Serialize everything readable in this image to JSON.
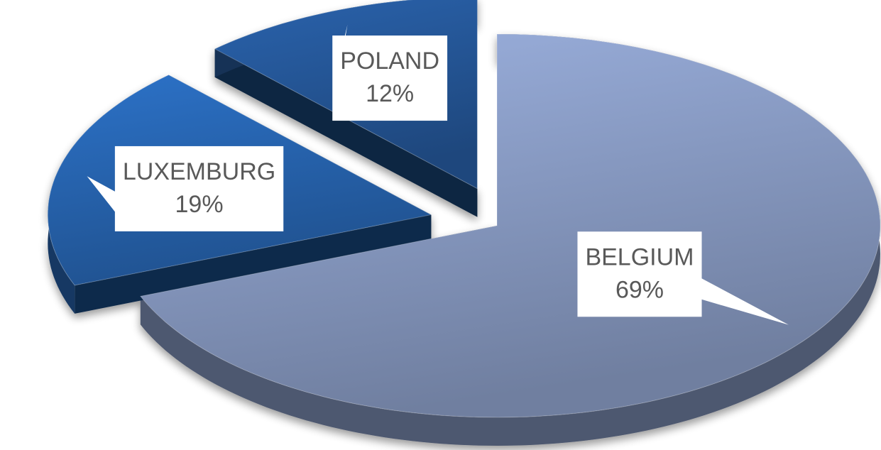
{
  "chart_data": {
    "type": "pie",
    "categories": [
      "BELGIUM",
      "LUXEMBURG",
      "POLAND"
    ],
    "values": [
      69,
      19,
      12
    ],
    "value_labels": [
      "69%",
      "19%",
      "12%"
    ],
    "colors": [
      "#9bb0de",
      "#2c72c8",
      "#2a63ad"
    ]
  }
}
